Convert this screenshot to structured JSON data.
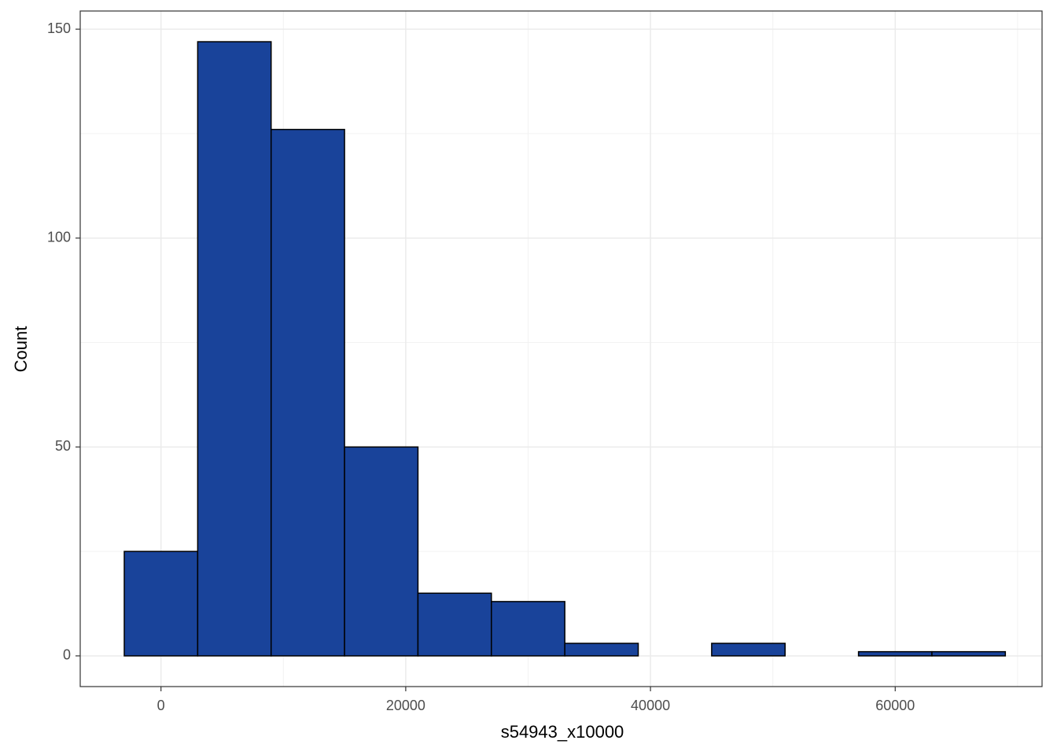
{
  "chart_data": {
    "type": "histogram",
    "x_label": "s54943_x10000",
    "y_label": "Count",
    "bins": [
      -3000,
      3000,
      9000,
      15000,
      21000,
      27000,
      33000,
      39000,
      45000,
      51000,
      57000,
      63000,
      69000
    ],
    "values": [
      25,
      147,
      126,
      50,
      15,
      13,
      3,
      0,
      3,
      0,
      1,
      1
    ],
    "color": "#19439a",
    "edge_color": "#000000",
    "xlim": [
      -6600,
      72000
    ],
    "ylim": [
      -7.35,
      154.35
    ],
    "xticks": [
      0,
      20000,
      40000,
      60000
    ],
    "yticks": [
      0,
      50,
      100,
      150
    ],
    "grid": true
  }
}
